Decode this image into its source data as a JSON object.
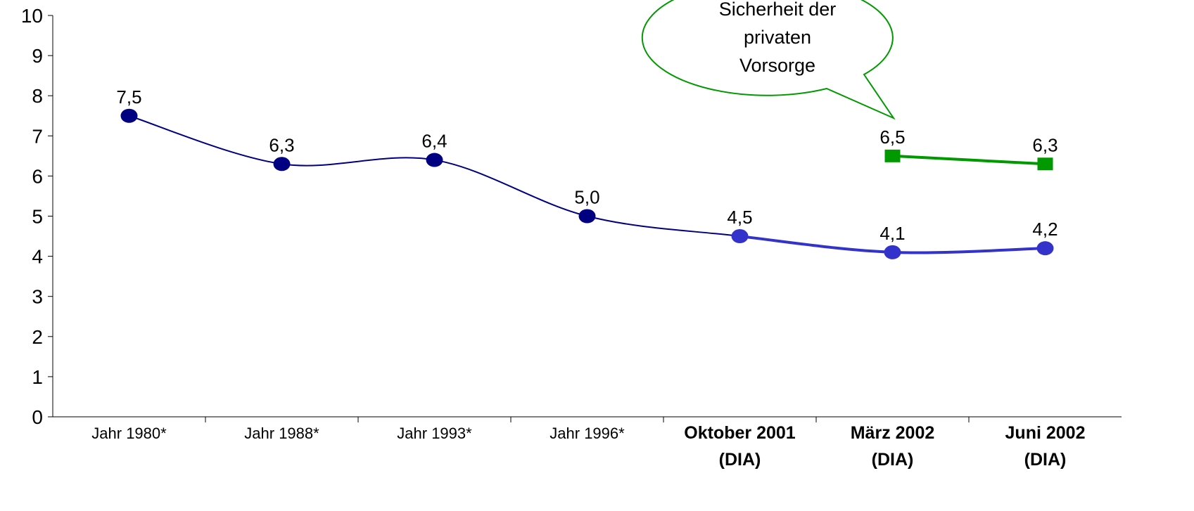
{
  "chart_data": {
    "type": "line",
    "categories": [
      [
        "Jahr 1980*"
      ],
      [
        "Jahr 1988*"
      ],
      [
        "Jahr 1993*"
      ],
      [
        "Jahr 1996*"
      ],
      [
        "Oktober 2001",
        "(DIA)"
      ],
      [
        "März 2002",
        "(DIA)"
      ],
      [
        "Juni 2002",
        "(DIA)"
      ]
    ],
    "category_bold": [
      false,
      false,
      false,
      false,
      true,
      true,
      true
    ],
    "series": [
      {
        "values": [
          7.5,
          6.3,
          6.4,
          5.0,
          4.5,
          4.1,
          4.2
        ],
        "value_labels": [
          "7,5",
          "6,3",
          "6,4",
          "5,0",
          "4,5",
          "4,1",
          "4,2"
        ],
        "point_colors": [
          "#000080",
          "#000080",
          "#000080",
          "#000080",
          "#3333cc",
          "#3333cc",
          "#3333cc"
        ],
        "marker": "circle"
      },
      {
        "values": [
          null,
          null,
          null,
          null,
          null,
          6.5,
          6.3
        ],
        "value_labels": [
          null,
          null,
          null,
          null,
          null,
          "6,5",
          "6,3"
        ],
        "color": "#009900",
        "marker": "square"
      }
    ],
    "annotation": {
      "lines": [
        "Sicherheit der",
        "privaten",
        "Vorsorge"
      ],
      "color": "#009900"
    },
    "ylim": [
      0,
      10
    ],
    "yticks": [
      0,
      1,
      2,
      3,
      4,
      5,
      6,
      7,
      8,
      9,
      10
    ]
  }
}
